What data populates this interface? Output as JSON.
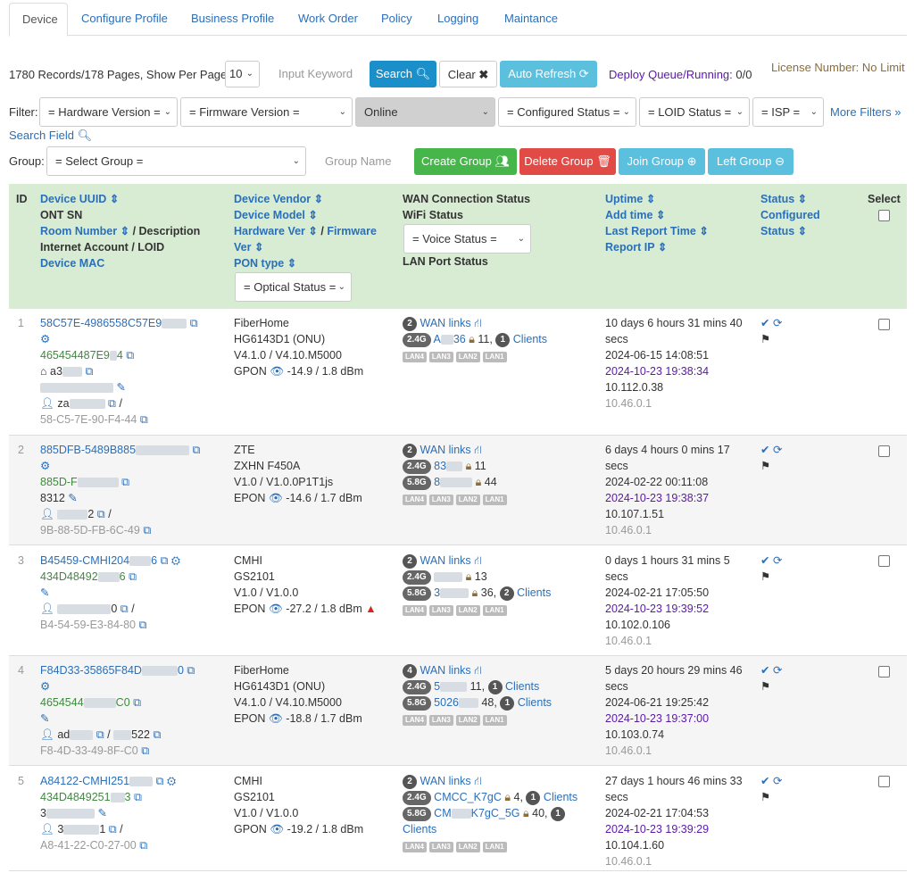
{
  "tabs": [
    "Device",
    "Configure Profile",
    "Business Profile",
    "Work Order",
    "Policy",
    "Logging",
    "Maintance"
  ],
  "toolbar": {
    "records": "1780 Records/178 Pages, Show Per Page:",
    "per_page": "10",
    "keyword_placeholder": "Input Keyword",
    "search": "Search",
    "clear": "Clear",
    "auto_refresh": "Auto Refresh",
    "deploy_queue": "Deploy Queue/Running:",
    "deploy_value": "0/0",
    "license": "License Number: No Limit"
  },
  "filters": {
    "label": "Filter:",
    "hardware": "= Hardware Version =",
    "firmware": "= Firmware Version =",
    "online": "Online",
    "configured": "= Configured Status =",
    "loid": "= LOID Status =",
    "isp": "= ISP =",
    "more": "More Filters",
    "search_field": "Search Field"
  },
  "group": {
    "label": "Group:",
    "select": "= Select Group =",
    "name_placeholder": "Group Name",
    "create": "Create Group",
    "delete": "Delete Group",
    "join": "Join Group",
    "left": "Left Group"
  },
  "colors": {
    "primary": "#1b8fc9",
    "success": "#46b54a",
    "danger": "#e24a45",
    "info": "#5bbfde",
    "header_bg": "#d7ecd2"
  },
  "header": {
    "id": "ID",
    "c1_l1": "Device UUID",
    "c1_l2": "ONT SN",
    "c1_l3a": "Room Number",
    "c1_l3b": "/ Description",
    "c1_l4": "Internet Account / LOID",
    "c1_l5": "Device MAC",
    "c2_l1": "Device Vendor",
    "c2_l2": "Device Model",
    "c2_l3a": "Hardware Ver",
    "c2_l3b": "/",
    "c2_l3c": "Firmware",
    "c2_l4": "Ver",
    "c2_l5": "PON type",
    "c2_sel": "= Optical Status =",
    "c3_l1": "WAN Connection Status",
    "c3_l2": "WiFi Status",
    "c3_sel": "= Voice Status =",
    "c3_l3": "LAN Port Status",
    "c4_l1": "Uptime",
    "c4_l2": "Add time",
    "c4_l3": "Last Report Time",
    "c4_l4": "Report IP",
    "c5_l1": "Status",
    "c5_l2": "Configured",
    "c5_l3": "Status",
    "select": "Select"
  },
  "rows": [
    {
      "id": "1",
      "uuid": "58C57E-4986558C57E9",
      "sn": "465454487E9",
      "room": "a3",
      "loid": "za",
      "mac": "58-C5-7E-90-F4-44",
      "vendor": "FiberHome",
      "model": "HG6143D1 (ONU)",
      "ver": "V4.1.0 / V4.10.M5000",
      "pon": "GPON",
      "optical": "-14.9 / 1.8 dBm",
      "wan_count": "2",
      "wan": "WAN links",
      "w24": "2.4G",
      "w24_ssid": "A",
      "w24_rest": "36",
      "w24_n": "11,",
      "w24_c": "1",
      "w24_clients": "Clients",
      "uptime1": "10 days 6 hours 31 mins 40",
      "uptime2": "secs",
      "added": "2024-06-15 14:08:51",
      "last": "2024-10-23 19:38:34",
      "ip": "10.112.0.38",
      "ip2": "10.46.0.1"
    },
    {
      "id": "2",
      "uuid": "885DFB-5489B885",
      "sn": "885D-F",
      "room": "8312",
      "loid": "2",
      "mac": "9B-88-5D-FB-6C-49",
      "vendor": "ZTE",
      "model": "ZXHN F450A",
      "ver": "V1.0 / V1.0.0P1T1js",
      "pon": "EPON",
      "optical": "-14.6 / 1.7 dBm",
      "wan_count": "2",
      "wan": "WAN links",
      "w24": "2.4G",
      "w24_ssid": "83",
      "w24_n": "11",
      "w58": "5.8G",
      "w58_ssid": "8",
      "w58_n": "44",
      "uptime1": "6 days 4 hours 0 mins 17",
      "uptime2": "secs",
      "added": "2024-02-22 00:11:08",
      "last": "2024-10-23 19:38:37",
      "ip": "10.107.1.51",
      "ip2": "10.46.0.1"
    },
    {
      "id": "3",
      "uuid": "B45459-CMHI204",
      "uuid_end": "6",
      "sn": "434D48492",
      "sn_end": "6",
      "loid": "0",
      "mac": "B4-54-59-E3-84-80",
      "vendor": "CMHI",
      "model": "GS2101",
      "ver": "V1.0 / V1.0.0",
      "pon": "EPON",
      "optical": "-27.2 / 1.8 dBm",
      "wan_count": "2",
      "wan": "WAN links",
      "w24": "2.4G",
      "w24_n": "13",
      "w58": "5.8G",
      "w58_ssid": "3",
      "w58_n": "36,",
      "w58_c": "2",
      "w58_clients": "Clients",
      "uptime1": "0 days 1 hours 31 mins 5",
      "uptime2": "secs",
      "added": "2024-02-21 17:05:50",
      "last": "2024-10-23 19:39:52",
      "ip": "10.102.0.106",
      "ip2": "10.46.0.1"
    },
    {
      "id": "4",
      "uuid": "F84D33-35865F84D",
      "uuid_end": "0",
      "sn": "4654544",
      "sn_end": "C0",
      "loid": "ad",
      "loid2": "522",
      "mac": "F8-4D-33-49-8F-C0",
      "vendor": "FiberHome",
      "model": "HG6143D1 (ONU)",
      "ver": "V4.1.0 / V4.10.M5000",
      "pon": "EPON",
      "optical": "-18.8 / 1.7 dBm",
      "wan_count": "4",
      "wan": "WAN links",
      "w24": "2.4G",
      "w24_ssid": "5",
      "w24_n": "11,",
      "w24_c": "1",
      "w24_clients": "Clients",
      "w58": "5.8G",
      "w58_ssid": "5026",
      "w58_n": "48,",
      "w58_c": "1",
      "w58_clients": "Clients",
      "uptime1": "5 days 20 hours 29 mins 46",
      "uptime2": "secs",
      "added": "2024-06-21 19:25:42",
      "last": "2024-10-23 19:37:00",
      "ip": "10.103.0.74",
      "ip2": "10.46.0.1"
    },
    {
      "id": "5",
      "uuid": "A84122-CMHI251",
      "sn": "434D4849251",
      "sn_end": "3",
      "room": "3",
      "loid": "3",
      "loid_end": "1",
      "mac": "A8-41-22-C0-27-00",
      "vendor": "CMHI",
      "model": "GS2101",
      "ver": "V1.0 / V1.0.0",
      "pon": "GPON",
      "optical": "-19.2 / 1.8 dBm",
      "wan_count": "2",
      "wan": "WAN links",
      "w24": "2.4G",
      "w24_ssid": "CMCC_K7gC",
      "w24_n": "4,",
      "w24_c": "1",
      "w24_clients": "Clients",
      "w58": "5.8G",
      "w58_ssid_a": "CM",
      "w58_ssid_b": "K7gC_5G",
      "w58_n": "40,",
      "w58_c": "1",
      "w58_clients": "Clients",
      "uptime1": "27 days 1 hours 46 mins 33",
      "uptime2": "secs",
      "added": "2024-02-21 17:04:53",
      "last": "2024-10-23 19:39:29",
      "ip": "10.104.1.60",
      "ip2": "10.46.0.1"
    }
  ],
  "lan_ports": [
    "LAN4",
    "LAN3",
    "LAN2",
    "LAN1"
  ]
}
